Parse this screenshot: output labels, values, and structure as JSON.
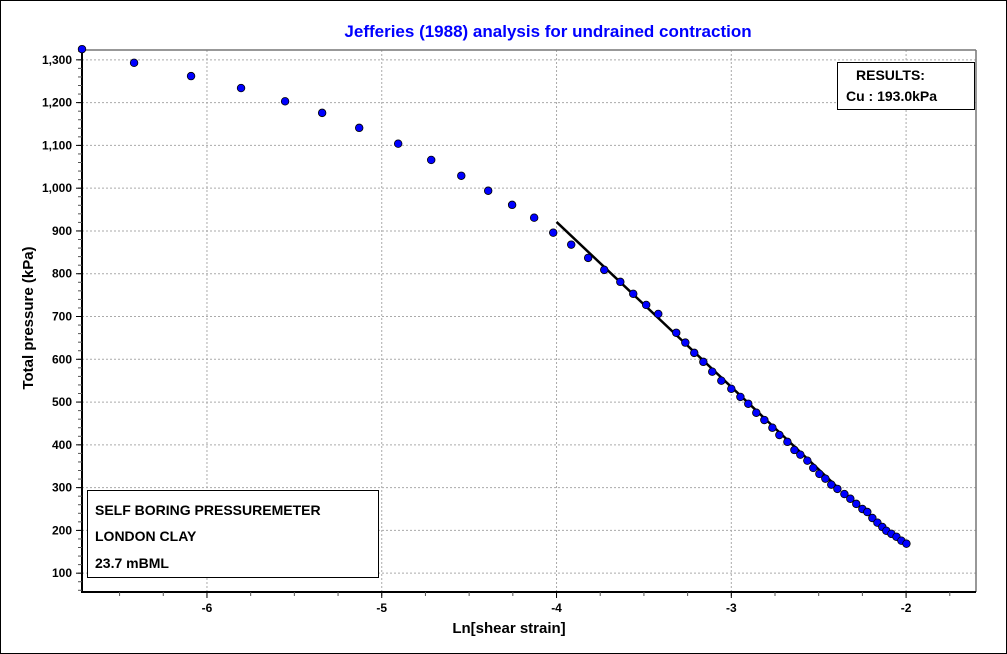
{
  "chart_data": {
    "type": "scatter",
    "title": "Jefferies (1988) analysis for undrained contraction",
    "xlabel": "Ln[shear strain]",
    "ylabel": "Total pressure (kPa)",
    "xlim": [
      -6.715,
      -1.6
    ],
    "ylim": [
      56,
      1323
    ],
    "xticks": [
      -6,
      -5,
      -4,
      -3,
      -2
    ],
    "xtick_labels": [
      "-6",
      "-5",
      "-4",
      "-3",
      "-2"
    ],
    "yticks": [
      100,
      200,
      300,
      400,
      500,
      600,
      700,
      800,
      900,
      1000,
      1100,
      1200,
      1300
    ],
    "ytick_labels": [
      "100",
      "200",
      "300",
      "400",
      "500",
      "600",
      "700",
      "800",
      "900",
      "1,000",
      "1,100",
      "1,200",
      "1,300"
    ],
    "grid": true,
    "marker_color": "#0000ff",
    "title_color": "#0000ff",
    "points": [
      [
        -6.715,
        1325
      ],
      [
        -6.417,
        1293
      ],
      [
        -6.091,
        1262
      ],
      [
        -5.805,
        1234
      ],
      [
        -5.553,
        1203
      ],
      [
        -5.341,
        1176
      ],
      [
        -5.129,
        1141
      ],
      [
        -4.906,
        1104
      ],
      [
        -4.717,
        1066
      ],
      [
        -4.545,
        1029
      ],
      [
        -4.391,
        994
      ],
      [
        -4.254,
        961
      ],
      [
        -4.128,
        931
      ],
      [
        -4.019,
        896
      ],
      [
        -3.916,
        868
      ],
      [
        -3.819,
        837
      ],
      [
        -3.727,
        809
      ],
      [
        -3.635,
        781
      ],
      [
        -3.561,
        753
      ],
      [
        -3.487,
        727
      ],
      [
        -3.418,
        706
      ],
      [
        -3.315,
        662
      ],
      [
        -3.263,
        639
      ],
      [
        -3.212,
        615
      ],
      [
        -3.16,
        594
      ],
      [
        -3.109,
        571
      ],
      [
        -3.057,
        550
      ],
      [
        -3.0,
        531
      ],
      [
        -2.948,
        512
      ],
      [
        -2.903,
        496
      ],
      [
        -2.857,
        475
      ],
      [
        -2.811,
        458
      ],
      [
        -2.765,
        440
      ],
      [
        -2.725,
        423
      ],
      [
        -2.679,
        407
      ],
      [
        -2.639,
        388
      ],
      [
        -2.605,
        377
      ],
      [
        -2.565,
        363
      ],
      [
        -2.531,
        346
      ],
      [
        -2.496,
        332
      ],
      [
        -2.462,
        321
      ],
      [
        -2.428,
        307
      ],
      [
        -2.393,
        297
      ],
      [
        -2.353,
        285
      ],
      [
        -2.319,
        274
      ],
      [
        -2.285,
        262
      ],
      [
        -2.25,
        250
      ],
      [
        -2.222,
        243
      ],
      [
        -2.193,
        229
      ],
      [
        -2.164,
        218
      ],
      [
        -2.136,
        208
      ],
      [
        -2.113,
        199
      ],
      [
        -2.084,
        192
      ],
      [
        -2.055,
        185
      ],
      [
        -2.027,
        176
      ],
      [
        -1.998,
        169
      ]
    ],
    "fit_line": [
      [
        -4.0,
        921
      ],
      [
        -2.39,
        300
      ]
    ]
  },
  "results": {
    "heading": "RESULTS:",
    "value": "Cu : 193.0kPa"
  },
  "info": {
    "line1": "SELF BORING PRESSUREMETER",
    "line2": "LONDON CLAY",
    "line3": "23.7 mBML"
  }
}
